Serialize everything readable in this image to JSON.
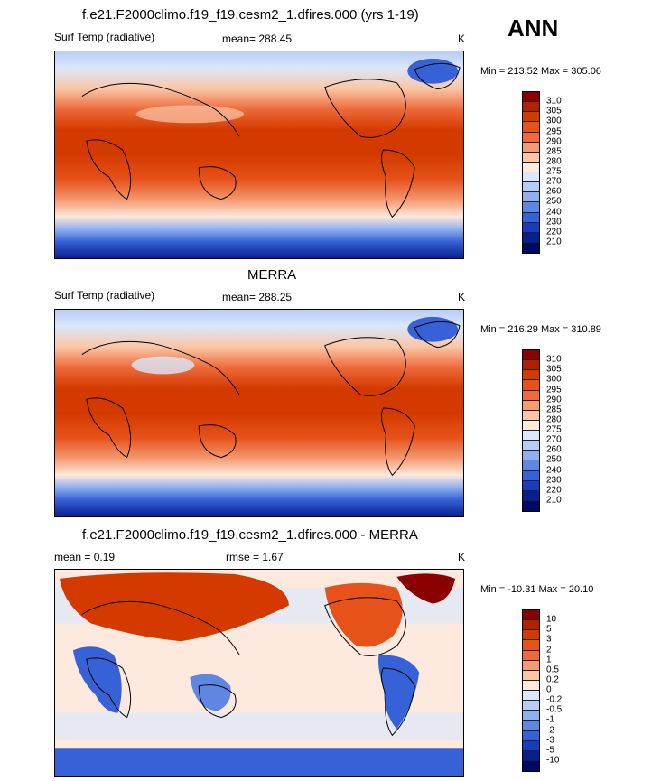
{
  "header": {
    "season": "ANN"
  },
  "panels": [
    {
      "id": "model",
      "title": "f.e21.F2000climo.f19_f19.cesm2_1.dfires.000 (yrs 1-19)",
      "variable": "Surf Temp (radiative)",
      "stat": "mean= 288.45",
      "units": "K",
      "minmax": "Min = 213.52 Max = 305.06",
      "colorbar": {
        "labels": [
          "310",
          "305",
          "300",
          "295",
          "290",
          "285",
          "280",
          "275",
          "270",
          "260",
          "250",
          "240",
          "230",
          "220",
          "210"
        ],
        "colors": [
          "#8b0000",
          "#b22000",
          "#d43a00",
          "#e6521a",
          "#ee6a3a",
          "#f59a72",
          "#fbc6a6",
          "#fde9dd",
          "#dbe7fb",
          "#b8cdf5",
          "#8fb0ee",
          "#5f86e3",
          "#3761d6",
          "#1a3bbf",
          "#08208f",
          "#000a66"
        ]
      }
    },
    {
      "id": "obs",
      "title": "MERRA",
      "variable": "Surf Temp (radiative)",
      "stat": "mean= 288.25",
      "units": "K",
      "minmax": "Min = 216.29 Max = 310.89",
      "colorbar": {
        "labels": [
          "310",
          "305",
          "300",
          "295",
          "290",
          "285",
          "280",
          "275",
          "270",
          "260",
          "250",
          "240",
          "230",
          "220",
          "210"
        ],
        "colors": [
          "#8b0000",
          "#b22000",
          "#d43a00",
          "#e6521a",
          "#ee6a3a",
          "#f59a72",
          "#fbc6a6",
          "#fde9dd",
          "#dbe7fb",
          "#b8cdf5",
          "#8fb0ee",
          "#5f86e3",
          "#3761d6",
          "#1a3bbf",
          "#08208f",
          "#000a66"
        ]
      }
    },
    {
      "id": "diff",
      "title": "f.e21.F2000climo.f19_f19.cesm2_1.dfires.000 - MERRA",
      "mean_label": "mean =   0.19",
      "rmse_label": "rmse =   1.67",
      "units": "K",
      "minmax": "Min = -10.31 Max =  20.10",
      "colorbar": {
        "labels": [
          "10",
          "5",
          "3",
          "2",
          "1",
          "0.5",
          "0.2",
          "0",
          "-0.2",
          "-0.5",
          "-1",
          "-2",
          "-3",
          "-5",
          "-10"
        ],
        "colors": [
          "#8b0000",
          "#b22000",
          "#d43a00",
          "#e6521a",
          "#ee6a3a",
          "#f59a72",
          "#fbc6a6",
          "#fde9dd",
          "#dbe7fb",
          "#b8cdf5",
          "#8fb0ee",
          "#5f86e3",
          "#3761d6",
          "#1a3bbf",
          "#08208f",
          "#000a66"
        ]
      }
    }
  ]
}
